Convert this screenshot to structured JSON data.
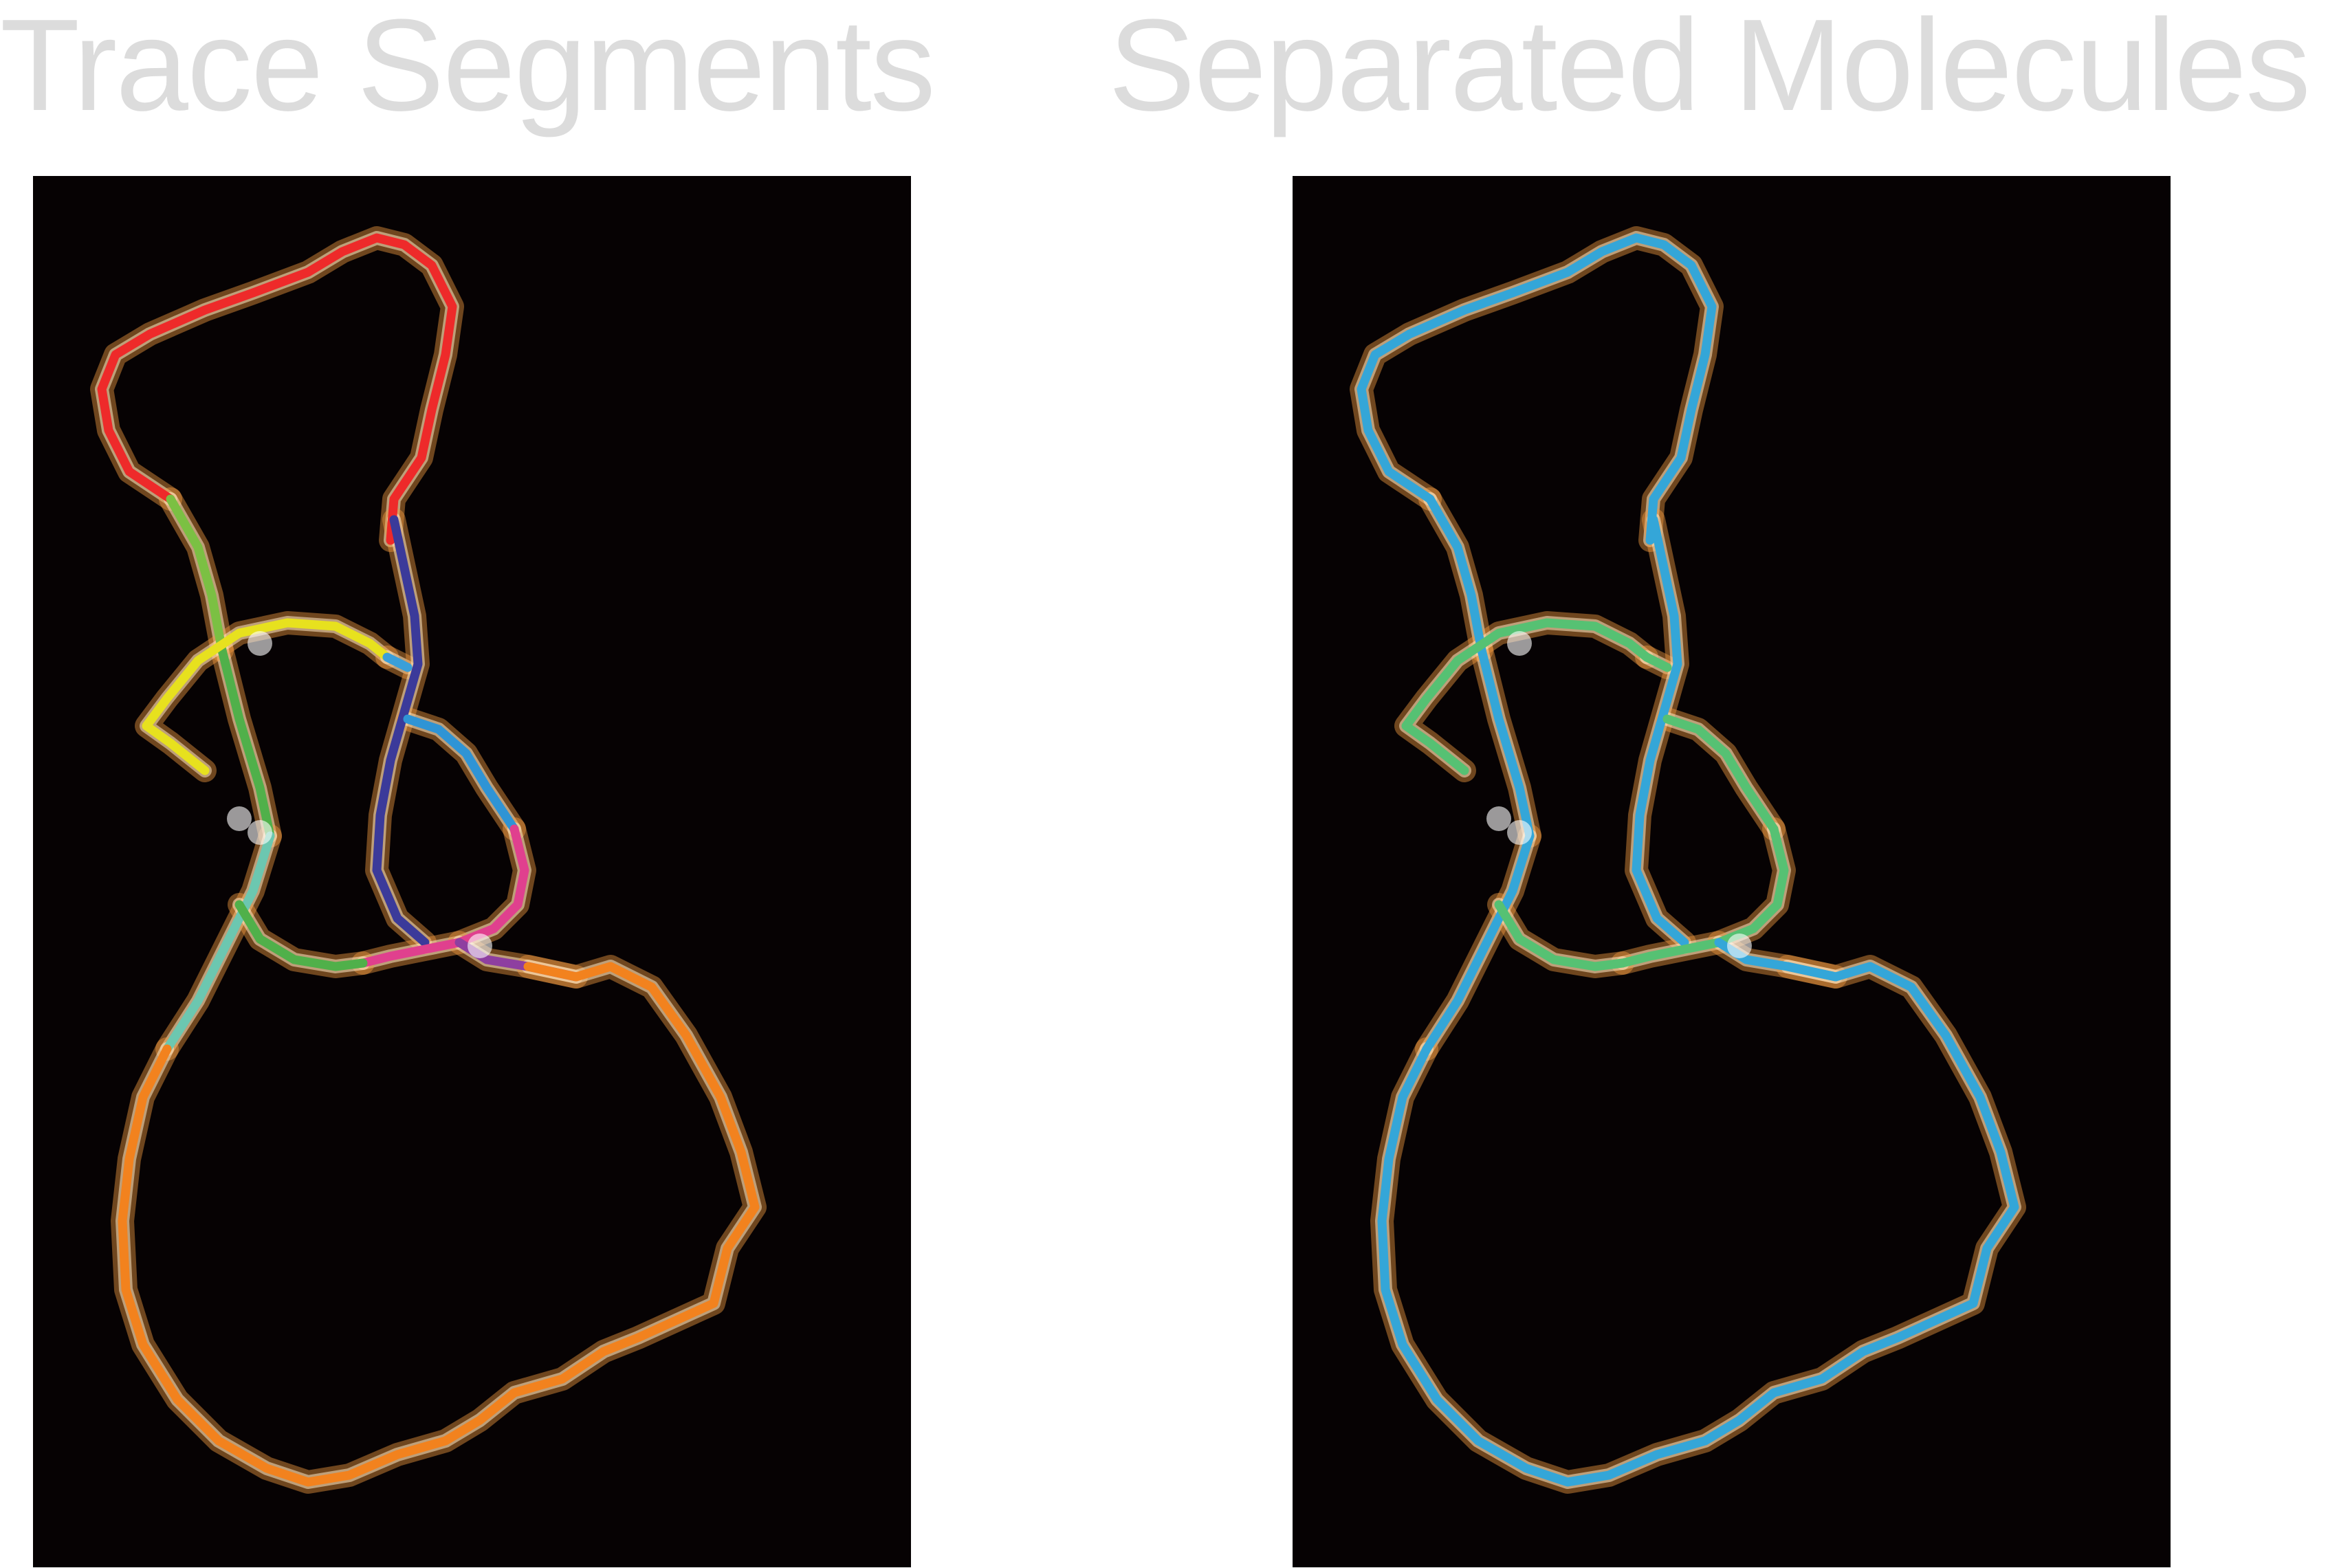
{
  "titles": {
    "left": "Trace Segments",
    "right": "Separated Molecules"
  },
  "colors": {
    "background": "#ffffff",
    "title": "#dcdcdc",
    "panel_background": "#060203",
    "glow": "#f09a40",
    "glow_core": "#ffe9c4",
    "crossing_highlight": "#ffffff"
  },
  "left_panel": {
    "segment_colors": {
      "top-loop": "#ee2a2a",
      "left-strand-upper": "#7bc043",
      "left-strand-lower": "#50b04a",
      "left-junction-short": "#6cc7b0",
      "yellow-arc": "#e7e11e",
      "small-connector": "#3a9fd9",
      "dark-blue-strand": "#3b3a9a",
      "light-blue-strand": "#2f94d5",
      "magenta-strand": "#e0408e",
      "purple-strand": "#8e3fa0",
      "large-loop": "#f2821e"
    }
  },
  "right_panel": {
    "molecule_colors": {
      "molecule-1": "#34a6d8",
      "molecule-2": "#56c173"
    }
  }
}
